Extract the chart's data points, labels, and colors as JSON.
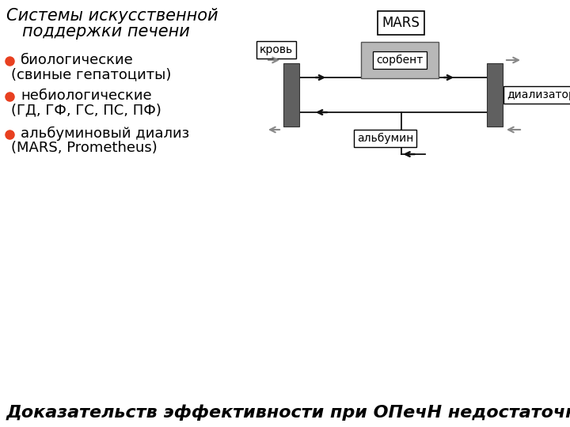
{
  "title_line1": "Системы искусственной",
  "title_line2": "поддержки печени",
  "bullet_color": "#e84020",
  "bullet1_line1": "биологические",
  "bullet1_line2": "(свиные гепатоциты)",
  "bullet2_line1": "небиологические",
  "bullet2_line2": "(ГД, ГФ, ГС, ПС, ПФ)",
  "bullet3_line1": "альбуминовый диализ",
  "bullet3_line2": "(MARS, Prometheus)",
  "footer": "Доказательств эффективности при ОПечН недостаточно",
  "bg_color": "#ffffff",
  "diagram_label_mars": "MARS",
  "diagram_label_krov": "кровь",
  "diagram_label_sorbent": "сорбент",
  "diagram_label_albumin": "альбумин",
  "diagram_label_dializ": "диализатор",
  "dark_box_color": "#606060",
  "sorbent_bg_color": "#b8b8b8",
  "arrow_color": "#111111",
  "open_arrow_color": "#888888",
  "title_fontsize": 15,
  "bullet_fontsize": 13,
  "footer_fontsize": 16,
  "diag_fontsize": 10
}
